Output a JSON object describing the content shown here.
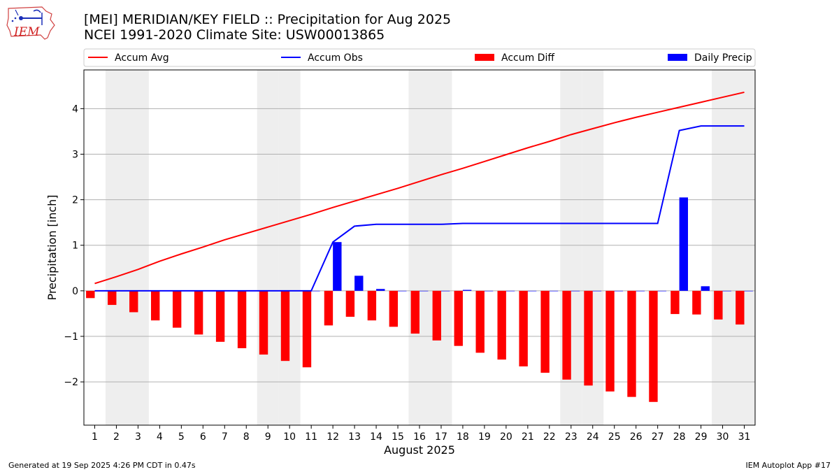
{
  "header": {
    "title": "[MEI] MERIDIAN/KEY FIELD :: Precipitation for Aug 2025",
    "subtitle": "NCEI 1991-2020 Climate Site: USW00013865",
    "logo_text": "IEM"
  },
  "footer": {
    "generated": "Generated at 19 Sep 2025 4:26 PM CDT in 0.47s",
    "app": "IEM Autoplot App #17"
  },
  "chart_data": {
    "type": "bar",
    "xlabel": "August 2025",
    "ylabel": "Precipitation [inch]",
    "ylim": [
      -2.95,
      4.85
    ],
    "xlim": [
      0.5,
      31.5
    ],
    "grid": "horizontal",
    "legend_position": "top",
    "yticks": [
      -2,
      -1,
      0,
      1,
      2,
      3,
      4
    ],
    "ytick_labels": [
      "−2",
      "−1",
      "0",
      "1",
      "2",
      "3",
      "4"
    ],
    "x": [
      1,
      2,
      3,
      4,
      5,
      6,
      7,
      8,
      9,
      10,
      11,
      12,
      13,
      14,
      15,
      16,
      17,
      18,
      19,
      20,
      21,
      22,
      23,
      24,
      25,
      26,
      27,
      28,
      29,
      30,
      31
    ],
    "weekend_days": [
      2,
      3,
      9,
      10,
      16,
      17,
      23,
      24,
      30,
      31
    ],
    "series": [
      {
        "name": "Accum Avg",
        "kind": "line",
        "color": "#ff0000",
        "values": [
          0.16,
          0.31,
          0.47,
          0.65,
          0.81,
          0.96,
          1.12,
          1.26,
          1.4,
          1.54,
          1.68,
          1.83,
          1.97,
          2.11,
          2.25,
          2.4,
          2.55,
          2.69,
          2.84,
          2.99,
          3.14,
          3.28,
          3.43,
          3.56,
          3.69,
          3.81,
          3.92,
          4.03,
          4.14,
          4.25,
          4.36
        ]
      },
      {
        "name": "Accum Obs",
        "kind": "line",
        "color": "#0000ff",
        "values": [
          0.0,
          0.0,
          0.0,
          0.0,
          0.0,
          0.0,
          0.0,
          0.0,
          0.0,
          0.0,
          0.0,
          1.07,
          1.42,
          1.46,
          1.46,
          1.46,
          1.46,
          1.48,
          1.48,
          1.48,
          1.48,
          1.48,
          1.48,
          1.48,
          1.48,
          1.48,
          1.48,
          3.52,
          3.62,
          3.62,
          3.62
        ]
      },
      {
        "name": "Accum Diff",
        "kind": "bar",
        "color": "#ff0000",
        "offset": -0.2,
        "values": [
          -0.16,
          -0.31,
          -0.47,
          -0.65,
          -0.81,
          -0.96,
          -1.12,
          -1.26,
          -1.4,
          -1.54,
          -1.68,
          -0.76,
          -0.57,
          -0.65,
          -0.79,
          -0.94,
          -1.09,
          -1.21,
          -1.36,
          -1.51,
          -1.66,
          -1.8,
          -1.95,
          -2.08,
          -2.21,
          -2.33,
          -2.44,
          -0.51,
          -0.52,
          -0.63,
          -0.74
        ]
      },
      {
        "name": "Daily Precip",
        "kind": "bar",
        "color": "#0000ff",
        "offset": 0.2,
        "values": [
          0,
          0,
          0,
          0,
          0,
          0,
          0,
          0,
          0,
          0,
          0,
          1.07,
          0.33,
          0.04,
          0,
          0,
          0,
          0.02,
          0,
          0,
          0,
          0,
          0,
          0,
          0,
          0,
          0,
          2.05,
          0.1,
          0,
          0
        ]
      }
    ]
  }
}
